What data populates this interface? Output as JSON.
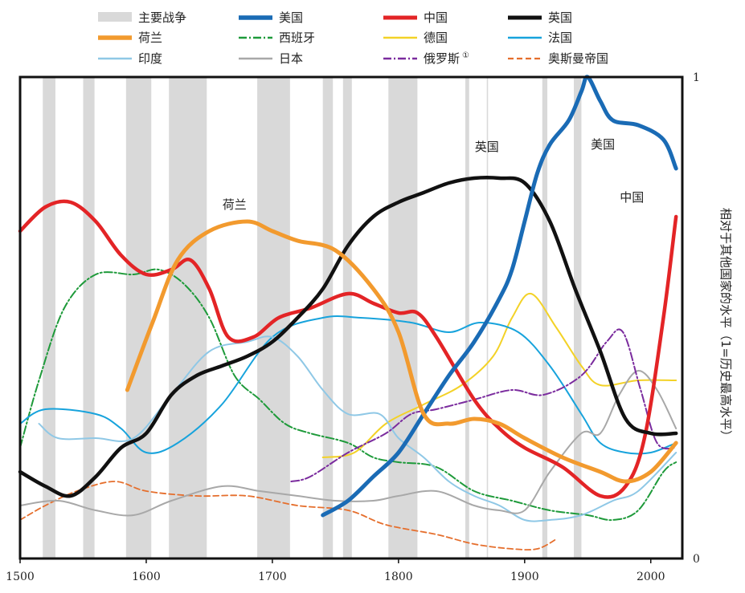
{
  "chart_data": {
    "type": "line",
    "xlim": [
      1500,
      2025
    ],
    "ylim": [
      0,
      1
    ],
    "x_ticks": [
      "1500",
      "1600",
      "1700",
      "1800",
      "1900",
      "2000"
    ],
    "y_ticks": [
      "1",
      "0"
    ],
    "ylabel": "相对于其他国家的水平（1=历史最高水平）",
    "legend_position": "top",
    "war_label": "主要战争",
    "war_color": "#d9d9d9",
    "war_periods": [
      [
        1518,
        1528
      ],
      [
        1550,
        1559
      ],
      [
        1584,
        1604
      ],
      [
        1618,
        1648
      ],
      [
        1688,
        1714
      ],
      [
        1740,
        1748
      ],
      [
        1756,
        1763
      ],
      [
        1792,
        1815
      ],
      [
        1853,
        1856
      ],
      [
        1870,
        1871
      ],
      [
        1914,
        1918
      ],
      [
        1939,
        1945
      ]
    ],
    "series": [
      {
        "name": "美国",
        "color": "#1a6bb5",
        "width": 5,
        "dash": "",
        "points": [
          [
            1740,
            0.09
          ],
          [
            1760,
            0.12
          ],
          [
            1780,
            0.17
          ],
          [
            1800,
            0.22
          ],
          [
            1820,
            0.3
          ],
          [
            1840,
            0.38
          ],
          [
            1860,
            0.45
          ],
          [
            1880,
            0.54
          ],
          [
            1890,
            0.6
          ],
          [
            1900,
            0.7
          ],
          [
            1910,
            0.8
          ],
          [
            1920,
            0.86
          ],
          [
            1935,
            0.91
          ],
          [
            1945,
            0.97
          ],
          [
            1950,
            1.0
          ],
          [
            1960,
            0.95
          ],
          [
            1970,
            0.91
          ],
          [
            1990,
            0.9
          ],
          [
            2010,
            0.87
          ],
          [
            2020,
            0.81
          ]
        ]
      },
      {
        "name": "中国",
        "color": "#e32426",
        "width": 4.5,
        "dash": "",
        "points": [
          [
            1500,
            0.68
          ],
          [
            1520,
            0.73
          ],
          [
            1540,
            0.74
          ],
          [
            1560,
            0.7
          ],
          [
            1580,
            0.63
          ],
          [
            1600,
            0.59
          ],
          [
            1620,
            0.6
          ],
          [
            1635,
            0.62
          ],
          [
            1650,
            0.56
          ],
          [
            1665,
            0.46
          ],
          [
            1685,
            0.46
          ],
          [
            1705,
            0.5
          ],
          [
            1730,
            0.52
          ],
          [
            1760,
            0.55
          ],
          [
            1780,
            0.53
          ],
          [
            1800,
            0.51
          ],
          [
            1815,
            0.51
          ],
          [
            1830,
            0.46
          ],
          [
            1860,
            0.33
          ],
          [
            1880,
            0.27
          ],
          [
            1900,
            0.23
          ],
          [
            1930,
            0.19
          ],
          [
            1960,
            0.13
          ],
          [
            1980,
            0.15
          ],
          [
            1995,
            0.25
          ],
          [
            2010,
            0.5
          ],
          [
            2020,
            0.71
          ]
        ]
      },
      {
        "name": "英国",
        "color": "#111111",
        "width": 4.5,
        "dash": "",
        "points": [
          [
            1500,
            0.18
          ],
          [
            1520,
            0.15
          ],
          [
            1540,
            0.13
          ],
          [
            1560,
            0.17
          ],
          [
            1580,
            0.23
          ],
          [
            1600,
            0.26
          ],
          [
            1620,
            0.34
          ],
          [
            1640,
            0.38
          ],
          [
            1660,
            0.4
          ],
          [
            1680,
            0.42
          ],
          [
            1700,
            0.45
          ],
          [
            1720,
            0.5
          ],
          [
            1740,
            0.56
          ],
          [
            1760,
            0.65
          ],
          [
            1780,
            0.71
          ],
          [
            1800,
            0.74
          ],
          [
            1820,
            0.76
          ],
          [
            1840,
            0.78
          ],
          [
            1860,
            0.79
          ],
          [
            1880,
            0.79
          ],
          [
            1900,
            0.78
          ],
          [
            1920,
            0.7
          ],
          [
            1940,
            0.56
          ],
          [
            1960,
            0.43
          ],
          [
            1980,
            0.29
          ],
          [
            2000,
            0.26
          ],
          [
            2020,
            0.26
          ]
        ]
      },
      {
        "name": "荷兰",
        "color": "#f29a2e",
        "width": 5,
        "dash": "",
        "points": [
          [
            1585,
            0.35
          ],
          [
            1605,
            0.49
          ],
          [
            1625,
            0.62
          ],
          [
            1650,
            0.68
          ],
          [
            1680,
            0.7
          ],
          [
            1700,
            0.68
          ],
          [
            1720,
            0.66
          ],
          [
            1750,
            0.64
          ],
          [
            1780,
            0.56
          ],
          [
            1800,
            0.47
          ],
          [
            1820,
            0.3
          ],
          [
            1840,
            0.28
          ],
          [
            1860,
            0.29
          ],
          [
            1880,
            0.28
          ],
          [
            1900,
            0.25
          ],
          [
            1930,
            0.21
          ],
          [
            1960,
            0.18
          ],
          [
            1980,
            0.16
          ],
          [
            2000,
            0.18
          ],
          [
            2020,
            0.24
          ]
        ]
      },
      {
        "name": "西班牙",
        "color": "#1e9a3a",
        "width": 2,
        "dash": "10,3,2,3",
        "points": [
          [
            1500,
            0.23
          ],
          [
            1515,
            0.37
          ],
          [
            1535,
            0.52
          ],
          [
            1560,
            0.59
          ],
          [
            1590,
            0.59
          ],
          [
            1610,
            0.6
          ],
          [
            1630,
            0.57
          ],
          [
            1650,
            0.5
          ],
          [
            1670,
            0.38
          ],
          [
            1690,
            0.33
          ],
          [
            1710,
            0.28
          ],
          [
            1730,
            0.26
          ],
          [
            1760,
            0.24
          ],
          [
            1780,
            0.21
          ],
          [
            1800,
            0.2
          ],
          [
            1830,
            0.19
          ],
          [
            1860,
            0.14
          ],
          [
            1890,
            0.12
          ],
          [
            1920,
            0.1
          ],
          [
            1950,
            0.09
          ],
          [
            1970,
            0.08
          ],
          [
            1990,
            0.1
          ],
          [
            2010,
            0.18
          ],
          [
            2020,
            0.2
          ]
        ]
      },
      {
        "name": "德国",
        "color": "#f3d227",
        "width": 2,
        "dash": "",
        "points": [
          [
            1740,
            0.21
          ],
          [
            1765,
            0.22
          ],
          [
            1790,
            0.28
          ],
          [
            1820,
            0.32
          ],
          [
            1850,
            0.36
          ],
          [
            1875,
            0.42
          ],
          [
            1890,
            0.5
          ],
          [
            1905,
            0.55
          ],
          [
            1925,
            0.48
          ],
          [
            1945,
            0.4
          ],
          [
            1960,
            0.36
          ],
          [
            1990,
            0.37
          ],
          [
            2020,
            0.37
          ]
        ]
      },
      {
        "name": "法国",
        "color": "#17a3dc",
        "width": 2,
        "dash": "",
        "points": [
          [
            1500,
            0.28
          ],
          [
            1520,
            0.31
          ],
          [
            1560,
            0.3
          ],
          [
            1580,
            0.27
          ],
          [
            1600,
            0.22
          ],
          [
            1625,
            0.24
          ],
          [
            1660,
            0.32
          ],
          [
            1700,
            0.46
          ],
          [
            1740,
            0.5
          ],
          [
            1770,
            0.5
          ],
          [
            1810,
            0.49
          ],
          [
            1840,
            0.47
          ],
          [
            1865,
            0.49
          ],
          [
            1895,
            0.47
          ],
          [
            1920,
            0.4
          ],
          [
            1945,
            0.3
          ],
          [
            1960,
            0.24
          ],
          [
            1980,
            0.22
          ],
          [
            2000,
            0.22
          ],
          [
            2020,
            0.24
          ]
        ]
      },
      {
        "name": "印度",
        "color": "#8fc8e6",
        "width": 2,
        "dash": "",
        "points": [
          [
            1515,
            0.28
          ],
          [
            1530,
            0.25
          ],
          [
            1560,
            0.25
          ],
          [
            1590,
            0.25
          ],
          [
            1620,
            0.34
          ],
          [
            1650,
            0.43
          ],
          [
            1680,
            0.45
          ],
          [
            1700,
            0.46
          ],
          [
            1720,
            0.42
          ],
          [
            1740,
            0.35
          ],
          [
            1760,
            0.3
          ],
          [
            1785,
            0.3
          ],
          [
            1800,
            0.25
          ],
          [
            1820,
            0.21
          ],
          [
            1840,
            0.16
          ],
          [
            1860,
            0.13
          ],
          [
            1880,
            0.11
          ],
          [
            1900,
            0.08
          ],
          [
            1920,
            0.08
          ],
          [
            1945,
            0.09
          ],
          [
            1970,
            0.12
          ],
          [
            1990,
            0.14
          ],
          [
            2020,
            0.22
          ]
        ]
      },
      {
        "name": "日本",
        "color": "#a8a8a8",
        "width": 2,
        "dash": "",
        "points": [
          [
            1500,
            0.11
          ],
          [
            1530,
            0.12
          ],
          [
            1560,
            0.1
          ],
          [
            1590,
            0.09
          ],
          [
            1620,
            0.12
          ],
          [
            1660,
            0.15
          ],
          [
            1690,
            0.14
          ],
          [
            1720,
            0.13
          ],
          [
            1750,
            0.12
          ],
          [
            1780,
            0.12
          ],
          [
            1800,
            0.13
          ],
          [
            1830,
            0.14
          ],
          [
            1860,
            0.11
          ],
          [
            1880,
            0.1
          ],
          [
            1900,
            0.1
          ],
          [
            1920,
            0.18
          ],
          [
            1945,
            0.26
          ],
          [
            1960,
            0.26
          ],
          [
            1975,
            0.34
          ],
          [
            1990,
            0.39
          ],
          [
            2005,
            0.35
          ],
          [
            2020,
            0.27
          ]
        ]
      },
      {
        "name": "俄罗斯",
        "color": "#7b2c9e",
        "width": 2,
        "dash": "10,3,2,3",
        "points": [
          [
            1715,
            0.16
          ],
          [
            1730,
            0.17
          ],
          [
            1760,
            0.22
          ],
          [
            1790,
            0.26
          ],
          [
            1810,
            0.3
          ],
          [
            1830,
            0.31
          ],
          [
            1860,
            0.33
          ],
          [
            1890,
            0.35
          ],
          [
            1915,
            0.34
          ],
          [
            1945,
            0.38
          ],
          [
            1965,
            0.45
          ],
          [
            1978,
            0.47
          ],
          [
            1992,
            0.35
          ],
          [
            2005,
            0.24
          ],
          [
            2020,
            0.23
          ]
        ]
      },
      {
        "name": "奥斯曼帝国",
        "color": "#e56e2c",
        "width": 1.8,
        "dash": "7,4",
        "points": [
          [
            1500,
            0.08
          ],
          [
            1520,
            0.11
          ],
          [
            1545,
            0.14
          ],
          [
            1575,
            0.16
          ],
          [
            1600,
            0.14
          ],
          [
            1640,
            0.13
          ],
          [
            1680,
            0.13
          ],
          [
            1720,
            0.11
          ],
          [
            1760,
            0.1
          ],
          [
            1790,
            0.07
          ],
          [
            1830,
            0.05
          ],
          [
            1860,
            0.03
          ],
          [
            1890,
            0.02
          ],
          [
            1910,
            0.02
          ],
          [
            1925,
            0.04
          ]
        ]
      }
    ],
    "annotations": [
      {
        "text": "荷兰",
        "x": 1670,
        "y": 0.735
      },
      {
        "text": "英国",
        "x": 1870,
        "y": 0.855
      },
      {
        "text": "美国",
        "x": 1962,
        "y": 0.86
      },
      {
        "text": "中国",
        "x": 1985,
        "y": 0.75
      }
    ],
    "footnote_mark": "①"
  }
}
